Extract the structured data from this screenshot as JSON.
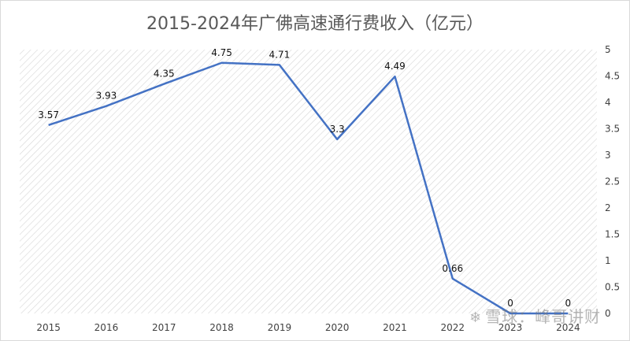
{
  "chart_data": {
    "type": "line",
    "title": "2015-2024年广佛高速通行费收入（亿元）",
    "categories": [
      "2015",
      "2016",
      "2017",
      "2018",
      "2019",
      "2020",
      "2021",
      "2022",
      "2023",
      "2024"
    ],
    "series": [
      {
        "values": [
          3.57,
          3.93,
          4.35,
          4.75,
          4.71,
          3.3,
          4.49,
          0.66,
          0,
          0
        ],
        "data_labels": [
          "3.57",
          "3.93",
          "4.35",
          "4.75",
          "4.71",
          "3.3",
          "4.49",
          "0.66",
          "0",
          "0"
        ]
      }
    ],
    "y_axis": {
      "position": "right",
      "ylim": [
        0,
        5
      ],
      "ticks": [
        "0",
        "0.5",
        "1",
        "1.5",
        "2",
        "2.5",
        "3",
        "3.5",
        "4",
        "4.5",
        "5"
      ]
    },
    "plot_area": "diagonal-hatch",
    "line_color": "#4472c4"
  },
  "watermark": {
    "text": "雪球：峰哥讲财",
    "icon": "snowball-logo-icon"
  }
}
